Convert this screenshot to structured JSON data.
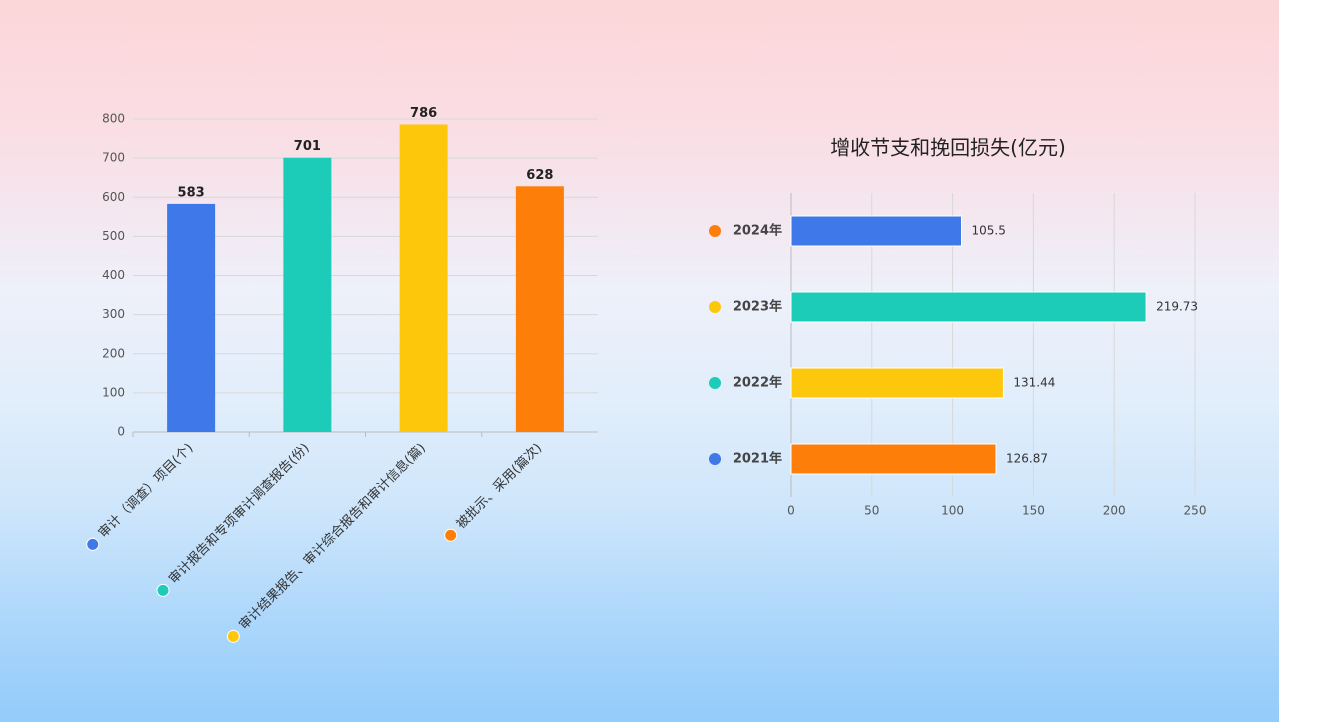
{
  "chart_data": [
    {
      "type": "bar",
      "categories": [
        "审计（调查）项目(个)",
        "审计报告和专项审计调查报告(份)",
        "审计结果报告、审计综合报告和审计信息(篇)",
        "被批示、采用(篇次)"
      ],
      "values": [
        583,
        701,
        786,
        628
      ],
      "colors": [
        "#3f78e8",
        "#1dcbb9",
        "#fdc70c",
        "#fd7e08"
      ],
      "ylim": [
        0,
        800
      ],
      "yticks": [
        0,
        100,
        200,
        300,
        400,
        500,
        600,
        700,
        800
      ],
      "grid": true
    },
    {
      "type": "hbar",
      "title": "增收节支和挽回损失(亿元)",
      "categories": [
        "2024年",
        "2023年",
        "2022年",
        "2021年"
      ],
      "values": [
        105.5,
        219.73,
        131.44,
        126.87
      ],
      "colors": [
        "#3f78e8",
        "#1dcbb9",
        "#fdc70c",
        "#fd7e08"
      ],
      "legend_colors": [
        "#fd7e08",
        "#fdc70c",
        "#1dcbb9",
        "#3f78e8"
      ],
      "xlim": [
        0,
        250
      ],
      "xticks": [
        0,
        50,
        100,
        150,
        200,
        250
      ],
      "grid": true
    }
  ]
}
